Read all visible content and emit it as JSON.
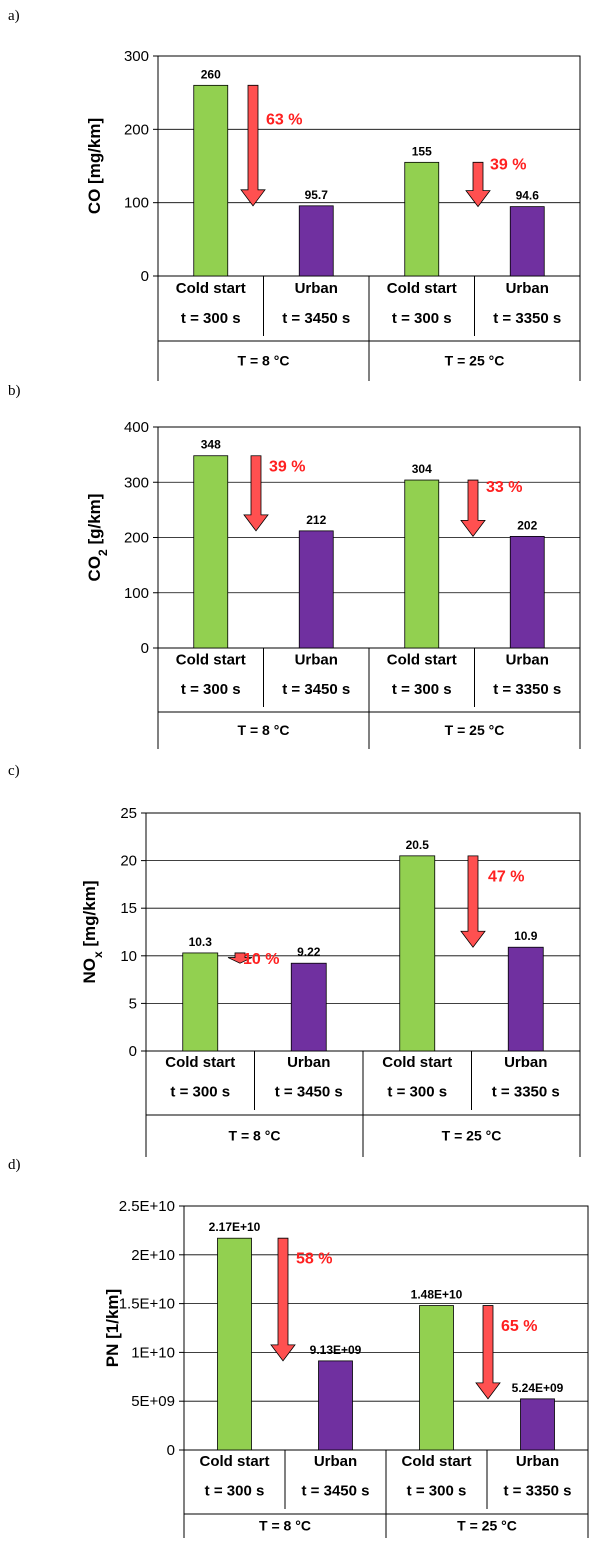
{
  "chart_data": [
    {
      "type": "bar",
      "panel_label": "a)",
      "ylabel": "CO [mg/km]",
      "ylabel_sub": "",
      "ylabel_suffix": "",
      "ylim": [
        0,
        300
      ],
      "yticks": [
        0,
        100,
        200,
        300
      ],
      "ytick_labels": [
        "0",
        "100",
        "200",
        "300"
      ],
      "grid": true,
      "bars": [
        {
          "category": "Cold start",
          "time": "t = 300 s",
          "group": "T = 8 °C",
          "value": 260,
          "label": "260",
          "color": "#92d050"
        },
        {
          "category": "Urban",
          "time": "t = 3450 s",
          "group": "T = 8 °C",
          "value": 95.7,
          "label": "95.7",
          "color": "#7030a0"
        },
        {
          "category": "Cold start",
          "time": "t = 300 s",
          "group": "T = 25 °C",
          "value": 155,
          "label": "155",
          "color": "#92d050"
        },
        {
          "category": "Urban",
          "time": "t = 3350 s",
          "group": "T = 25 °C",
          "value": 94.6,
          "label": "94.6",
          "color": "#7030a0"
        }
      ],
      "reductions": [
        {
          "label": "63 %",
          "from": 260,
          "to": 95.7
        },
        {
          "label": "39 %",
          "from": 155,
          "to": 94.6
        }
      ],
      "groups": [
        "T = 8 °C",
        "T = 25 °C"
      ]
    },
    {
      "type": "bar",
      "panel_label": "b)",
      "ylabel": "CO",
      "ylabel_sub": "2",
      "ylabel_suffix": " [g/km]",
      "ylim": [
        0,
        400
      ],
      "yticks": [
        0,
        100,
        200,
        300,
        400
      ],
      "ytick_labels": [
        "0",
        "100",
        "200",
        "300",
        "400"
      ],
      "grid": true,
      "bars": [
        {
          "category": "Cold start",
          "time": "t = 300 s",
          "group": "T = 8 °C",
          "value": 348,
          "label": "348",
          "color": "#92d050"
        },
        {
          "category": "Urban",
          "time": "t = 3450 s",
          "group": "T = 8 °C",
          "value": 212,
          "label": "212",
          "color": "#7030a0"
        },
        {
          "category": "Cold start",
          "time": "t = 300 s",
          "group": "T = 25 °C",
          "value": 304,
          "label": "304",
          "color": "#92d050"
        },
        {
          "category": "Urban",
          "time": "t = 3350 s",
          "group": "T = 25 °C",
          "value": 202,
          "label": "202",
          "color": "#7030a0"
        }
      ],
      "reductions": [
        {
          "label": "39 %",
          "from": 348,
          "to": 212
        },
        {
          "label": "33 %",
          "from": 304,
          "to": 202
        }
      ],
      "groups": [
        "T = 8 °C",
        "T = 25 °C"
      ]
    },
    {
      "type": "bar",
      "panel_label": "c)",
      "ylabel": "NO",
      "ylabel_sub": "x",
      "ylabel_suffix": " [mg/km]",
      "ylim": [
        0,
        25
      ],
      "yticks": [
        0,
        5,
        10,
        15,
        20,
        25
      ],
      "ytick_labels": [
        "0",
        "5",
        "10",
        "15",
        "20",
        "25"
      ],
      "grid": true,
      "bars": [
        {
          "category": "Cold start",
          "time": "t = 300 s",
          "group": "T = 8 °C",
          "value": 10.3,
          "label": "10.3",
          "color": "#92d050"
        },
        {
          "category": "Urban",
          "time": "t = 3450 s",
          "group": "T = 8 °C",
          "value": 9.22,
          "label": "9.22",
          "color": "#7030a0"
        },
        {
          "category": "Cold start",
          "time": "t = 300 s",
          "group": "T = 25 °C",
          "value": 20.5,
          "label": "20.5",
          "color": "#92d050"
        },
        {
          "category": "Urban",
          "time": "t = 3350 s",
          "group": "T = 25 °C",
          "value": 10.9,
          "label": "10.9",
          "color": "#7030a0"
        }
      ],
      "reductions": [
        {
          "label": "10 %",
          "from": 10.3,
          "to": 9.22
        },
        {
          "label": "47 %",
          "from": 20.5,
          "to": 10.9
        }
      ],
      "groups": [
        "T = 8 °C",
        "T = 25 °C"
      ]
    },
    {
      "type": "bar",
      "panel_label": "d)",
      "ylabel": "PN [1/km]",
      "ylabel_sub": "",
      "ylabel_suffix": "",
      "ylim": [
        0,
        25000000000
      ],
      "yticks": [
        0,
        5000000000,
        10000000000,
        15000000000,
        20000000000,
        25000000000
      ],
      "ytick_labels": [
        "0",
        "5E+09",
        "1E+10",
        "1.5E+10",
        "2E+10",
        "2.5E+10"
      ],
      "grid": true,
      "bars": [
        {
          "category": "Cold start",
          "time": "t = 300 s",
          "group": "T = 8 °C",
          "value": 21700000000,
          "label": "2.17E+10",
          "color": "#92d050"
        },
        {
          "category": "Urban",
          "time": "t = 3450 s",
          "group": "T = 8 °C",
          "value": 9130000000,
          "label": "9.13E+09",
          "color": "#7030a0"
        },
        {
          "category": "Cold start",
          "time": "t = 300 s",
          "group": "T = 25 °C",
          "value": 14800000000,
          "label": "1.48E+10",
          "color": "#92d050"
        },
        {
          "category": "Urban",
          "time": "t = 3350 s",
          "group": "T = 25 °C",
          "value": 5240000000,
          "label": "5.24E+09",
          "color": "#7030a0"
        }
      ],
      "reductions": [
        {
          "label": "58 %",
          "from": 21700000000,
          "to": 9130000000
        },
        {
          "label": "65 %",
          "from": 14800000000,
          "to": 5240000000
        }
      ],
      "groups": [
        "T = 8 °C",
        "T = 25 °C"
      ]
    }
  ],
  "colors": {
    "cold": "#92d050",
    "urban": "#7030a0",
    "arrow": "#ff5050",
    "arrow_text": "#ff2020"
  }
}
